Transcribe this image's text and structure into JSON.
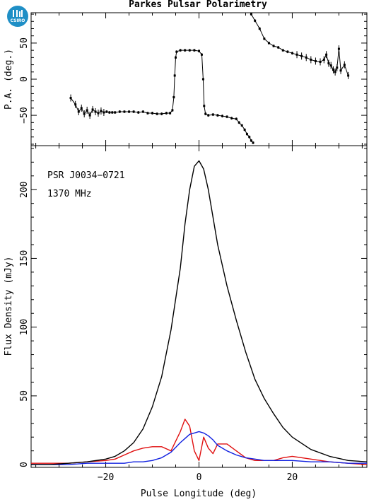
{
  "figure": {
    "title": "Parkes Pulsar Polarimetry",
    "logo_text": "CSIRO"
  },
  "chart_data": [
    {
      "type": "scatter",
      "panel": "top",
      "xlabel": "",
      "ylabel": "P.A. (deg.)",
      "xlim": [
        -36,
        36
      ],
      "ylim": [
        -92,
        92
      ],
      "yticks": [
        -50,
        0,
        50
      ],
      "series": [
        {
          "x": [
            -27.5,
            -26.5,
            -25.8,
            -25.2,
            -24.6,
            -24,
            -23.4,
            -22.8,
            -22.2,
            -21.6,
            -21,
            -20.4,
            -19.8,
            -19.2,
            -18.6,
            -18,
            -17,
            -16,
            -15,
            -14,
            -13,
            -12,
            -11,
            -10,
            -9,
            -8,
            -7,
            -6.2,
            -5.7,
            -5.4,
            -5.2,
            -5.0,
            -4.8,
            -4,
            -3,
            -2,
            -1,
            0,
            0.6,
            0.9,
            1.1,
            1.4,
            2,
            3,
            4,
            5,
            6,
            7,
            8,
            8.6,
            9.2,
            9.8,
            10.3,
            10.8,
            11.2,
            11.6
          ],
          "y": [
            -26,
            -35,
            -45,
            -40,
            -48,
            -43,
            -50,
            -42,
            -45,
            -47,
            -44,
            -46,
            -45,
            -46,
            -46,
            -46,
            -45,
            -45,
            -45,
            -45,
            -46,
            -45,
            -47,
            -47,
            -48,
            -48,
            -47,
            -47,
            -43,
            -25,
            5,
            30,
            38,
            40,
            40,
            40,
            40,
            39,
            34,
            0,
            -37,
            -48,
            -50,
            -49,
            -50,
            -51,
            -52,
            -54,
            -55,
            -60,
            -64,
            -70,
            -76,
            -80,
            -85,
            -88
          ]
        },
        {
          "x": [
            11.2,
            12,
            13,
            14,
            15,
            16,
            17,
            18,
            19,
            20,
            21,
            22,
            23,
            24,
            25,
            26,
            26.8,
            27.3,
            27.8,
            28.3,
            28.8,
            29.2,
            29.6,
            30,
            30.4,
            31.2,
            32
          ],
          "y": [
            90,
            81,
            70,
            56,
            50,
            46,
            44,
            40,
            38,
            36,
            34,
            32,
            30,
            27,
            25,
            24,
            27,
            34,
            22,
            19,
            13,
            10,
            16,
            42,
            12,
            20,
            5
          ]
        }
      ]
    },
    {
      "type": "line",
      "panel": "bottom",
      "annotations": [
        "PSR J0034−0721",
        "1370 MHz"
      ],
      "xlabel": "Pulse Longitude (deg)",
      "ylabel": "Flux Density (mJy)",
      "xlim": [
        -36,
        36
      ],
      "ylim": [
        -2,
        232
      ],
      "xticks": [
        -20,
        0,
        20
      ],
      "yticks": [
        0,
        50,
        100,
        150,
        200
      ],
      "x": [
        -36,
        -32,
        -28,
        -24,
        -20,
        -18,
        -16,
        -14,
        -12,
        -10,
        -8,
        -6,
        -4,
        -3,
        -2,
        -1,
        0,
        1,
        2,
        3,
        4,
        6,
        8,
        10,
        12,
        14,
        16,
        18,
        20,
        24,
        28,
        32,
        36
      ],
      "series": [
        {
          "color": "#000000",
          "values": [
            0,
            0,
            1,
            2,
            4,
            6,
            10,
            16,
            26,
            42,
            64,
            98,
            143,
            175,
            200,
            217,
            221,
            215,
            200,
            180,
            160,
            130,
            105,
            82,
            62,
            48,
            37,
            27,
            20,
            11,
            6,
            3,
            2
          ]
        },
        {
          "color": "#e01010",
          "values": [
            1,
            1,
            1,
            2,
            3,
            4,
            7,
            10,
            12,
            13,
            13,
            10,
            24,
            33,
            28,
            10,
            3,
            20,
            12,
            8,
            15,
            15,
            10,
            5,
            3,
            3,
            3,
            5,
            6,
            4,
            2,
            1,
            0
          ]
        },
        {
          "color": "#1020e0",
          "values": [
            0,
            0,
            0,
            1,
            1,
            1,
            1,
            2,
            2,
            3,
            5,
            9,
            16,
            19,
            22,
            23,
            24,
            23,
            21,
            18,
            14,
            10,
            7,
            5,
            4,
            3,
            3,
            3,
            3,
            2,
            2,
            1,
            1
          ]
        }
      ]
    }
  ]
}
